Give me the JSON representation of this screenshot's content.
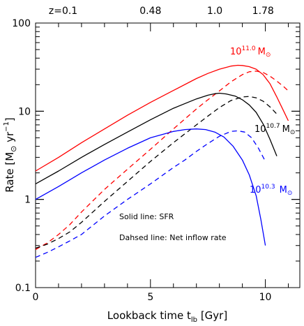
{
  "chart_data": {
    "type": "line",
    "xlabel": {
      "main": "Lookback time t",
      "sub": "lb",
      "unit": "[Gyr]"
    },
    "ylabel": {
      "prefix": "Rate [M",
      "mid": " yr",
      "sup": "−1",
      "suffix": "]"
    },
    "xlim": [
      0,
      11.5
    ],
    "ylim": [
      0.1,
      100
    ],
    "yscale": "log",
    "x_ticks": [
      {
        "value": 0,
        "label": "0"
      },
      {
        "value": 5,
        "label": "5"
      },
      {
        "value": 10,
        "label": "10"
      }
    ],
    "y_ticks": [
      {
        "value": 0.1,
        "label": "0.1"
      },
      {
        "value": 1,
        "label": "1"
      },
      {
        "value": 10,
        "label": "10"
      },
      {
        "value": 100,
        "label": "100"
      }
    ],
    "top_axis_labels": [
      {
        "x": 1.2,
        "label": "z=0.1"
      },
      {
        "x": 5.0,
        "label": "0.48"
      },
      {
        "x": 7.8,
        "label": "1.0"
      },
      {
        "x": 9.9,
        "label": "1.78"
      }
    ],
    "annotations": [
      "Solid line: SFR",
      "Dahsed line: Net inflow rate"
    ],
    "groups": [
      {
        "color": "#ff0000",
        "label_base": "10",
        "label_exp": "11.0",
        "label_unit": "M",
        "solid": {
          "x": [
            0,
            1,
            2,
            3,
            4,
            5,
            6,
            7,
            7.5,
            8,
            8.5,
            8.8,
            9.0,
            9.3,
            9.6,
            9.9,
            10.2,
            10.5,
            10.8,
            11.0
          ],
          "y": [
            2.1,
            3.0,
            4.4,
            6.3,
            9.0,
            12.6,
            17.2,
            23.5,
            26.8,
            30.0,
            32.5,
            33.2,
            33.0,
            32.0,
            30.0,
            26.0,
            20.5,
            14.5,
            10.0,
            7.8
          ]
        },
        "dashed": {
          "x": [
            0,
            0.5,
            1,
            1.5,
            2,
            3,
            4,
            5,
            6,
            7,
            7.5,
            8,
            8.5,
            9,
            9.3,
            9.6,
            9.9,
            10.2,
            10.5,
            10.8,
            11.0
          ],
          "y": [
            0.27,
            0.32,
            0.4,
            0.52,
            0.72,
            1.3,
            2.2,
            3.7,
            6.3,
            10.6,
            13.5,
            17.0,
            21.5,
            26.0,
            28.0,
            28.5,
            27.5,
            25.0,
            22.0,
            19.0,
            17.0
          ]
        }
      },
      {
        "color": "#000000",
        "label_base": "10",
        "label_exp": "10.7",
        "label_unit": "M",
        "solid": {
          "x": [
            0,
            1,
            2,
            3,
            4,
            5,
            6,
            7,
            7.5,
            7.8,
            8.0,
            8.3,
            8.7,
            9.0,
            9.3,
            9.6,
            9.9,
            10.2,
            10.5
          ],
          "y": [
            1.5,
            2.1,
            3.0,
            4.2,
            5.8,
            8.0,
            10.8,
            13.8,
            15.2,
            15.8,
            16.0,
            15.7,
            14.8,
            13.5,
            11.8,
            9.7,
            7.2,
            4.8,
            3.1
          ]
        },
        "dashed": {
          "x": [
            0,
            0.5,
            1,
            1.5,
            2,
            3,
            4,
            5,
            6,
            7,
            7.5,
            8,
            8.5,
            9,
            9.3,
            9.6,
            9.9,
            10.2,
            10.5
          ],
          "y": [
            0.28,
            0.31,
            0.36,
            0.43,
            0.55,
            0.95,
            1.6,
            2.7,
            4.4,
            7.0,
            8.8,
            11.0,
            13.2,
            14.5,
            14.7,
            14.2,
            13.0,
            11.2,
            9.3
          ]
        }
      },
      {
        "color": "#0000ff",
        "label_base": "10",
        "label_exp": "10.3",
        "label_unit": "M",
        "solid": {
          "x": [
            0,
            1,
            2,
            3,
            4,
            5,
            6,
            6.5,
            7.0,
            7.4,
            7.8,
            8.2,
            8.6,
            9.0,
            9.3,
            9.6,
            9.8,
            10.0
          ],
          "y": [
            1.0,
            1.4,
            2.0,
            2.8,
            3.8,
            5.0,
            5.9,
            6.2,
            6.3,
            6.2,
            5.8,
            5.1,
            4.0,
            2.8,
            1.9,
            1.1,
            0.6,
            0.3
          ]
        },
        "dashed": {
          "x": [
            0,
            0.5,
            1,
            1.5,
            2,
            3,
            4,
            5,
            6,
            6.5,
            7,
            7.5,
            8,
            8.5,
            8.8,
            9.1,
            9.4,
            9.7,
            10.0
          ],
          "y": [
            0.22,
            0.25,
            0.29,
            0.34,
            0.4,
            0.65,
            1.0,
            1.5,
            2.3,
            2.8,
            3.5,
            4.3,
            5.2,
            5.9,
            6.0,
            5.8,
            5.0,
            3.8,
            2.7
          ]
        }
      }
    ]
  }
}
